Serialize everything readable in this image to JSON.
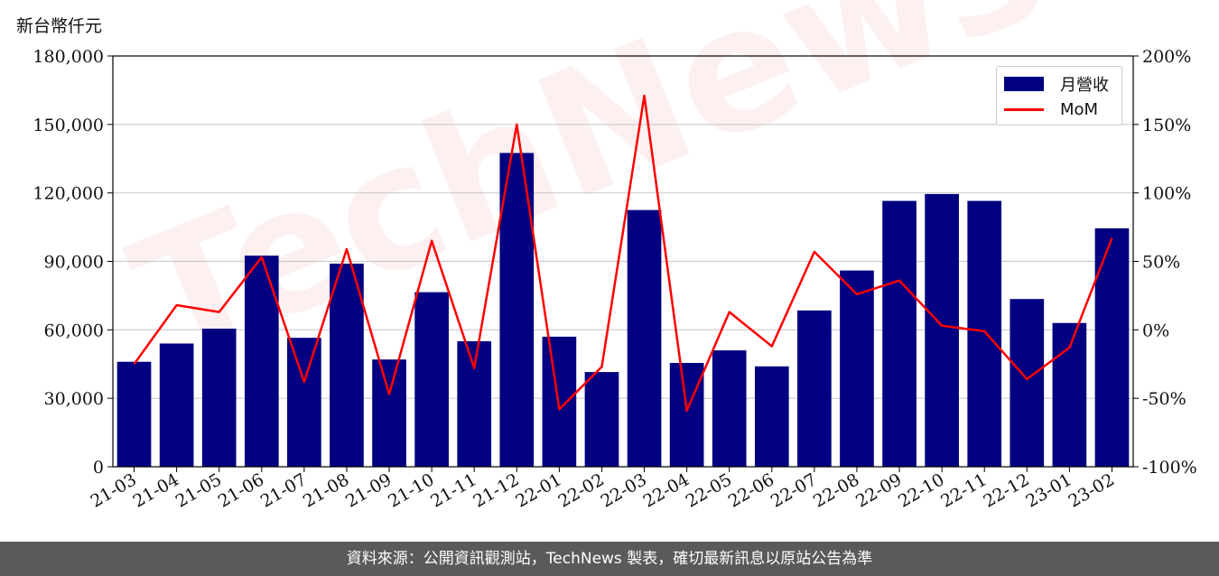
{
  "y_left_unit": "新台幣仟元",
  "watermark": "TechNews",
  "footer": "資料來源：公開資訊觀測站，TechNews 製表，確切最新訊息以原站公告為準",
  "colors": {
    "bar": "#000080",
    "line": "#ff0000",
    "grid": "#cccccc",
    "footer_bg": "#5a5a5a"
  },
  "chart_data": {
    "type": "bar",
    "categories": [
      "21-03",
      "21-04",
      "21-05",
      "21-06",
      "21-07",
      "21-08",
      "21-09",
      "21-10",
      "21-11",
      "21-12",
      "22-01",
      "22-02",
      "22-03",
      "22-04",
      "22-05",
      "22-06",
      "22-07",
      "22-08",
      "22-09",
      "22-10",
      "22-11",
      "22-12",
      "23-01",
      "23-02"
    ],
    "series": [
      {
        "name": "月營收",
        "type": "bar",
        "axis": "left",
        "values": [
          46000,
          54000,
          60500,
          92500,
          56500,
          89000,
          47000,
          76500,
          55000,
          137500,
          57000,
          41500,
          112500,
          45500,
          51000,
          44000,
          68500,
          86000,
          116500,
          119500,
          116500,
          73500,
          63000,
          104500
        ]
      },
      {
        "name": "MoM",
        "type": "line",
        "axis": "right",
        "values": [
          -25,
          18,
          13,
          53,
          -38,
          59,
          -47,
          65,
          -28,
          150,
          -58,
          -27,
          171,
          -59,
          13,
          -12,
          57,
          26,
          36,
          3,
          -1,
          -36,
          -13,
          67
        ]
      }
    ],
    "y_left": {
      "lim": [
        0,
        180000
      ],
      "ticks": [
        "0",
        "30,000",
        "60,000",
        "90,000",
        "120,000",
        "150,000",
        "180,000"
      ]
    },
    "y_right": {
      "lim": [
        -100,
        200
      ],
      "ticks": [
        "-100%",
        "-50%",
        "0%",
        "50%",
        "100%",
        "150%",
        "200%"
      ]
    },
    "grid": true,
    "legend_position": "top-right"
  }
}
